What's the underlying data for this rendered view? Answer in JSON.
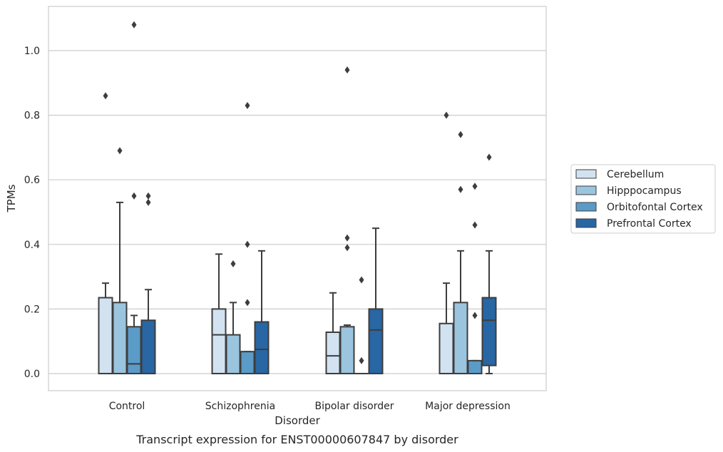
{
  "chart_data": {
    "type": "box",
    "title": "",
    "caption": "Transcript expression for ENST00000607847 by disorder",
    "xlabel": "Disorder",
    "ylabel": "TPMs",
    "ylim": [
      -0.05,
      1.14
    ],
    "yticks": [
      "0.0",
      "0.2",
      "0.4",
      "0.6",
      "0.8",
      "1.0"
    ],
    "ytick_values": [
      0.0,
      0.2,
      0.4,
      0.6,
      0.8,
      1.0
    ],
    "grid": "horizontal",
    "legend_position": "right",
    "categories": [
      "Control",
      "Schizophrenia",
      "Bipolar disorder",
      "Major depression"
    ],
    "series": [
      {
        "name": "Cerebellum",
        "color": "#d2e2f0",
        "boxes": [
          {
            "q1": 0.0,
            "median": 0.0,
            "q3": 0.235,
            "whisker_low": 0.0,
            "whisker_high": 0.28,
            "outliers": [
              0.86
            ]
          },
          {
            "q1": 0.0,
            "median": 0.12,
            "q3": 0.2,
            "whisker_low": 0.0,
            "whisker_high": 0.37,
            "outliers": []
          },
          {
            "q1": 0.0,
            "median": 0.055,
            "q3": 0.128,
            "whisker_low": 0.0,
            "whisker_high": 0.25,
            "outliers": []
          },
          {
            "q1": 0.0,
            "median": 0.0,
            "q3": 0.155,
            "whisker_low": 0.0,
            "whisker_high": 0.28,
            "outliers": [
              0.8
            ]
          }
        ]
      },
      {
        "name": "Hipppocampus",
        "color": "#9bc4de",
        "boxes": [
          {
            "q1": 0.0,
            "median": 0.0,
            "q3": 0.22,
            "whisker_low": 0.0,
            "whisker_high": 0.53,
            "outliers": [
              0.69
            ]
          },
          {
            "q1": 0.0,
            "median": 0.0,
            "q3": 0.12,
            "whisker_low": 0.0,
            "whisker_high": 0.22,
            "outliers": [
              0.34
            ]
          },
          {
            "q1": 0.0,
            "median": 0.0,
            "q3": 0.145,
            "whisker_low": 0.0,
            "whisker_high": 0.15,
            "outliers": [
              0.94,
              0.42,
              0.39
            ]
          },
          {
            "q1": 0.0,
            "median": 0.0,
            "q3": 0.22,
            "whisker_low": 0.0,
            "whisker_high": 0.38,
            "outliers": [
              0.74,
              0.57
            ]
          }
        ]
      },
      {
        "name": "Orbitofontal Cortex",
        "color": "#5a9bc8",
        "boxes": [
          {
            "q1": 0.0,
            "median": 0.03,
            "q3": 0.145,
            "whisker_low": 0.0,
            "whisker_high": 0.18,
            "outliers": [
              1.08,
              0.55
            ]
          },
          {
            "q1": 0.0,
            "median": 0.0,
            "q3": 0.068,
            "whisker_low": 0.0,
            "whisker_high": 0.068,
            "outliers": [
              0.83,
              0.4,
              0.22
            ]
          },
          {
            "q1": 0.0,
            "median": 0.0,
            "q3": 0.0,
            "whisker_low": 0.0,
            "whisker_high": 0.0,
            "outliers": [
              0.29,
              0.04
            ]
          },
          {
            "q1": 0.0,
            "median": 0.0,
            "q3": 0.04,
            "whisker_low": 0.0,
            "whisker_high": 0.04,
            "outliers": [
              0.58,
              0.46,
              0.18
            ]
          }
        ]
      },
      {
        "name": "Prefrontal Cortex",
        "color": "#2866a4",
        "boxes": [
          {
            "q1": 0.0,
            "median": 0.0,
            "q3": 0.165,
            "whisker_low": 0.0,
            "whisker_high": 0.26,
            "outliers": [
              0.55,
              0.53
            ]
          },
          {
            "q1": 0.0,
            "median": 0.075,
            "q3": 0.16,
            "whisker_low": 0.0,
            "whisker_high": 0.38,
            "outliers": []
          },
          {
            "q1": 0.0,
            "median": 0.135,
            "q3": 0.2,
            "whisker_low": 0.0,
            "whisker_high": 0.45,
            "outliers": []
          },
          {
            "q1": 0.025,
            "median": 0.165,
            "q3": 0.235,
            "whisker_low": 0.0,
            "whisker_high": 0.38,
            "outliers": [
              0.67
            ]
          }
        ]
      }
    ]
  }
}
